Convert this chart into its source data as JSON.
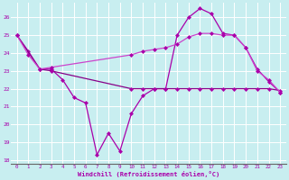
{
  "background_color": "#c8eef0",
  "grid_color": "#ffffff",
  "line_color1": "#aa00aa",
  "line_color2": "#cc44cc",
  "line_color3": "#880088",
  "xlabel": "Windchill (Refroidissement éolien,°C)",
  "xlabel_color": "#aa00aa",
  "ylabel_color": "#aa00aa",
  "xlim": [
    -0.5,
    23.5
  ],
  "ylim": [
    17.8,
    26.8
  ],
  "yticks": [
    18,
    19,
    20,
    21,
    22,
    23,
    24,
    25,
    26
  ],
  "xticks": [
    0,
    1,
    2,
    3,
    4,
    5,
    6,
    7,
    8,
    9,
    10,
    11,
    12,
    13,
    14,
    15,
    16,
    17,
    18,
    19,
    20,
    21,
    22,
    23
  ],
  "series1_x": [
    0,
    1,
    2,
    3,
    4,
    5,
    6,
    7,
    8,
    9,
    10,
    11,
    12,
    13,
    14,
    15,
    16,
    17,
    18,
    19,
    20,
    21,
    22,
    23
  ],
  "series1_y": [
    25.0,
    24.1,
    23.1,
    23.1,
    22.5,
    21.5,
    21.2,
    18.3,
    19.5,
    18.5,
    20.6,
    21.6,
    22.0,
    22.0,
    25.0,
    26.0,
    26.5,
    26.2,
    25.1,
    25.0,
    24.3,
    23.1,
    22.4,
    21.8
  ],
  "series2_x": [
    0,
    2,
    3,
    10,
    11,
    12,
    13,
    14,
    15,
    16,
    17,
    18,
    19,
    20,
    21,
    22,
    23
  ],
  "series2_y": [
    25.0,
    23.1,
    23.0,
    22.0,
    22.0,
    22.0,
    22.0,
    22.0,
    22.0,
    22.0,
    22.0,
    22.0,
    22.0,
    22.0,
    22.0,
    22.0,
    21.9
  ],
  "series3_x": [
    0,
    1,
    2,
    3,
    10,
    11,
    12,
    13,
    14,
    15,
    16,
    17,
    18,
    19,
    20,
    21,
    22,
    23
  ],
  "series3_y": [
    25.0,
    23.9,
    23.1,
    23.2,
    23.9,
    24.1,
    24.2,
    24.3,
    24.5,
    24.9,
    25.1,
    25.1,
    25.0,
    25.0,
    24.3,
    23.0,
    22.5,
    21.8
  ]
}
